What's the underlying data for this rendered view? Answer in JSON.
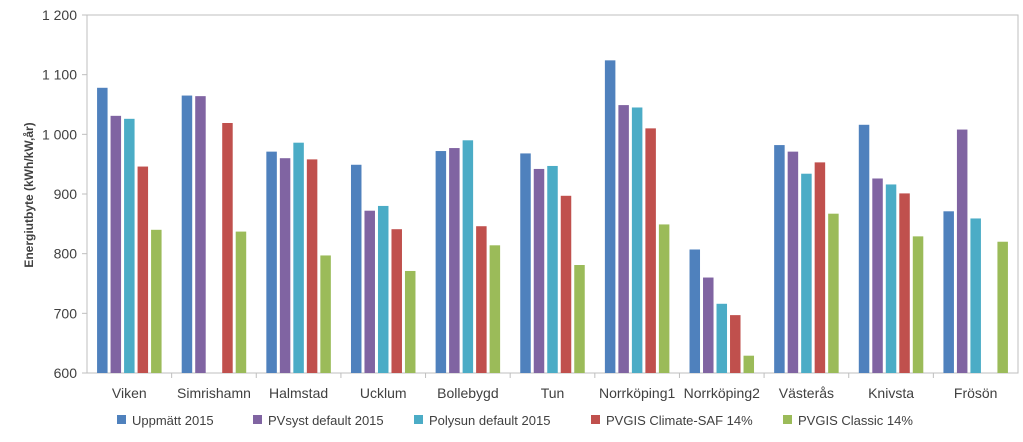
{
  "chart_data": {
    "type": "bar",
    "title": "",
    "xlabel": "",
    "ylabel": "Energiutbyte (kWh/kW,år)",
    "ylim": [
      600,
      1200
    ],
    "yticks": [
      600,
      700,
      800,
      900,
      1000,
      1100,
      1200
    ],
    "ytick_labels": [
      "600",
      "700",
      "800",
      "900",
      "1 000",
      "1 100",
      "1 200"
    ],
    "grid": "none",
    "legend_position": "bottom",
    "categories": [
      "Viken",
      "Simrishamn",
      "Halmstad",
      "Ucklum",
      "Bollebygd",
      "Tun",
      "Norrköping1",
      "Norrköping2",
      "Västerås",
      "Knivsta",
      "Frösön"
    ],
    "series": [
      {
        "name": "Uppmätt 2015",
        "color": "#4f81bd",
        "values": [
          1078,
          1065,
          971,
          949,
          972,
          968,
          1124,
          807,
          982,
          1016,
          871
        ]
      },
      {
        "name": "PVsyst default 2015",
        "color": "#8064a2",
        "values": [
          1031,
          1064,
          960,
          872,
          977,
          942,
          1049,
          760,
          971,
          926,
          1008
        ]
      },
      {
        "name": "Polysun default 2015",
        "color": "#4bacc6",
        "values": [
          1026,
          null,
          986,
          880,
          990,
          947,
          1045,
          716,
          934,
          916,
          859
        ]
      },
      {
        "name": "PVGIS Climate-SAF 14%",
        "color": "#c0504d",
        "values": [
          946,
          1019,
          958,
          841,
          846,
          897,
          1010,
          697,
          953,
          901,
          null
        ]
      },
      {
        "name": "PVGIS Classic 14%",
        "color": "#9bbb59",
        "values": [
          840,
          837,
          797,
          771,
          814,
          781,
          849,
          629,
          867,
          829,
          820
        ]
      }
    ]
  }
}
